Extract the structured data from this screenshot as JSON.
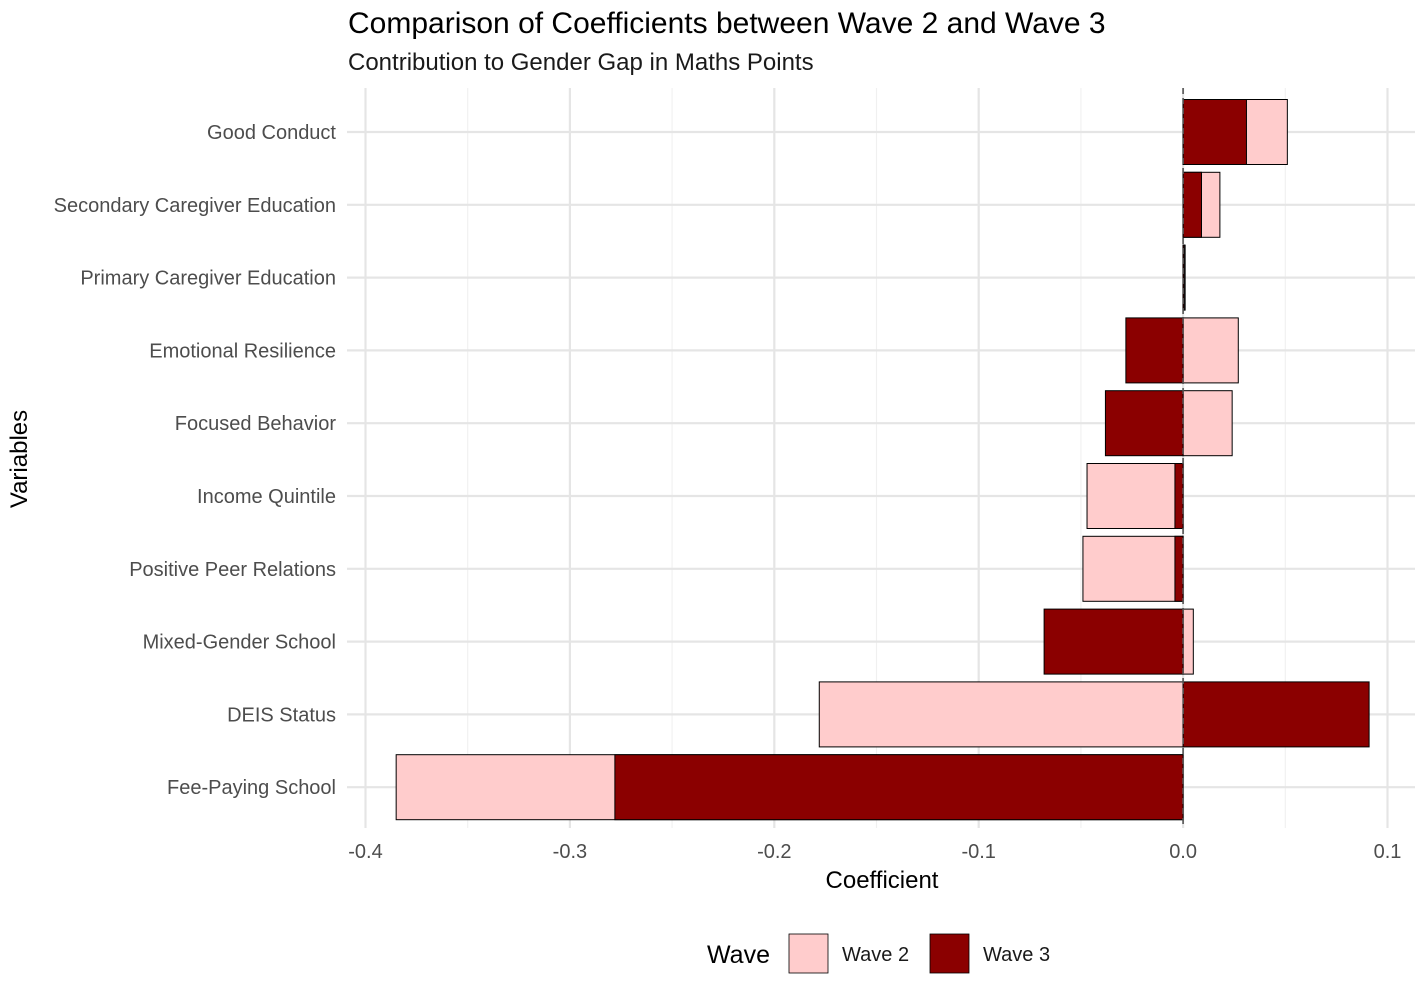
{
  "chart_data": {
    "type": "bar",
    "orientation": "horizontal",
    "title": "Comparison of Coefficients between Wave 2 and Wave 3",
    "subtitle": "Contribution to Gender Gap in Maths Points",
    "xlabel": "Coefficient",
    "ylabel": "Variables",
    "xlim": [
      -0.4,
      0.1
    ],
    "x_ticks": [
      "-0.4",
      "-0.3",
      "-0.2",
      "-0.1",
      "0.0",
      "0.1"
    ],
    "x_tick_values": [
      -0.4,
      -0.3,
      -0.2,
      -0.1,
      0.0,
      0.1
    ],
    "grid": true,
    "reference_line": 0,
    "categories": [
      "Good Conduct",
      "Secondary Caregiver Education",
      "Primary Caregiver Education",
      "Emotional Resilience",
      "Focused Behavior",
      "Income Quintile",
      "Positive Peer Relations",
      "Mixed-Gender School",
      "DEIS Status",
      "Fee-Paying School"
    ],
    "series": [
      {
        "name": "Wave 2",
        "color": "#ffcccc",
        "values": [
          0.051,
          0.018,
          0.001,
          0.027,
          0.024,
          -0.047,
          -0.049,
          0.005,
          -0.178,
          -0.385
        ]
      },
      {
        "name": "Wave 3",
        "color": "#8b0000",
        "values": [
          0.031,
          0.009,
          0.0005,
          -0.028,
          -0.038,
          -0.004,
          -0.004,
          -0.068,
          0.091,
          -0.278
        ]
      }
    ],
    "legend": {
      "title": "Wave",
      "position": "bottom"
    }
  }
}
